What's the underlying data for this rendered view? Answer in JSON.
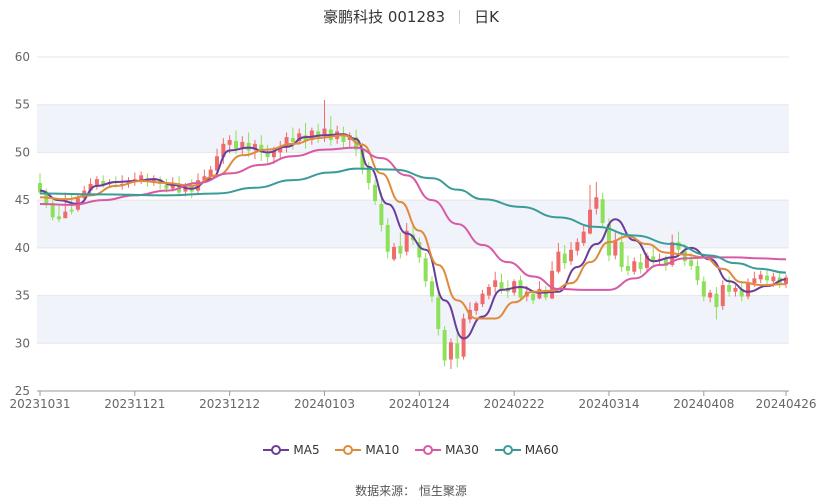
{
  "header": {
    "title": "豪鹏科技 001283",
    "period": "日K"
  },
  "source": "数据来源： 恒生聚源",
  "colors": {
    "up": "#ef6b6b",
    "down": "#8de05a",
    "grid": "#e6e6e6",
    "band": "#f0f3fa"
  },
  "chart_data": {
    "type": "candlestick",
    "ylim": [
      25,
      60
    ],
    "yticks": [
      25,
      30,
      35,
      40,
      45,
      50,
      55,
      60
    ],
    "xtick_labels": [
      "20231031",
      "20231121",
      "20231212",
      "20240103",
      "20240124",
      "20240222",
      "20240314",
      "20240408",
      "20240426"
    ],
    "xtick_index": [
      0,
      15,
      30,
      45,
      60,
      75,
      90,
      105,
      118
    ],
    "legend": [
      {
        "name": "MA5",
        "color": "#6a3d9a"
      },
      {
        "name": "MA10",
        "color": "#e08a3c"
      },
      {
        "name": "MA30",
        "color": "#d85aa5"
      },
      {
        "name": "MA60",
        "color": "#3a9c98"
      }
    ],
    "ohlc": [
      [
        46.8,
        47.8,
        45.8,
        45.6
      ],
      [
        45.9,
        46.2,
        44.5,
        44.2
      ],
      [
        44.7,
        45.0,
        43.2,
        42.9
      ],
      [
        43.3,
        44.5,
        43.0,
        42.7
      ],
      [
        43.1,
        45.8,
        43.8,
        43.5
      ],
      [
        44.0,
        45.6,
        43.8,
        43.5
      ],
      [
        44.0,
        45.6,
        45.2,
        43.8
      ],
      [
        45.2,
        46.5,
        46.0,
        44.8
      ],
      [
        46.0,
        47.3,
        46.7,
        45.7
      ],
      [
        46.6,
        47.5,
        47.2,
        46.1
      ],
      [
        47.0,
        47.6,
        46.6,
        46.3
      ],
      [
        46.7,
        47.2,
        46.9,
        46.4
      ],
      [
        46.9,
        47.5,
        46.8,
        46.3
      ],
      [
        46.6,
        47.6,
        46.7,
        46.1
      ],
      [
        46.8,
        47.4,
        46.9,
        46.3
      ],
      [
        47.1,
        47.9,
        47.2,
        46.5
      ],
      [
        47.1,
        48.0,
        47.6,
        46.7
      ],
      [
        47.3,
        47.8,
        46.9,
        46.4
      ],
      [
        46.8,
        47.6,
        47.3,
        46.5
      ],
      [
        47.2,
        47.5,
        46.7,
        46.1
      ],
      [
        46.6,
        47.2,
        46.2,
        45.8
      ],
      [
        46.2,
        47.4,
        46.7,
        45.9
      ],
      [
        46.7,
        47.5,
        45.8,
        45.4
      ],
      [
        45.9,
        46.8,
        46.4,
        45.4
      ],
      [
        46.5,
        47.2,
        45.9,
        45.2
      ],
      [
        46.0,
        47.8,
        47.1,
        45.6
      ],
      [
        47.1,
        48.2,
        47.5,
        46.8
      ],
      [
        47.5,
        48.6,
        48.2,
        47.1
      ],
      [
        48.1,
        50.4,
        49.6,
        47.7
      ],
      [
        49.5,
        51.5,
        50.9,
        48.8
      ],
      [
        50.8,
        51.8,
        51.3,
        49.9
      ],
      [
        51.2,
        52.3,
        50.4,
        49.8
      ],
      [
        50.5,
        51.7,
        51.1,
        49.8
      ],
      [
        51.0,
        52.1,
        50.2,
        49.5
      ],
      [
        50.3,
        51.3,
        50.9,
        49.3
      ],
      [
        50.8,
        51.8,
        50.0,
        49.1
      ],
      [
        49.9,
        50.8,
        49.5,
        48.9
      ],
      [
        49.5,
        50.6,
        50.1,
        48.8
      ],
      [
        50.0,
        51.2,
        50.6,
        49.3
      ],
      [
        50.5,
        52.1,
        51.6,
        50.0
      ],
      [
        51.5,
        52.6,
        51.1,
        50.3
      ],
      [
        51.2,
        52.5,
        52.0,
        50.8
      ],
      [
        51.8,
        53.1,
        51.2,
        50.4
      ],
      [
        51.3,
        52.6,
        52.3,
        50.8
      ],
      [
        52.2,
        53.0,
        51.6,
        51.0
      ],
      [
        51.7,
        55.5,
        52.5,
        51.1
      ],
      [
        52.4,
        53.8,
        51.3,
        50.7
      ],
      [
        51.4,
        52.8,
        52.2,
        50.9
      ],
      [
        52.0,
        52.7,
        51.1,
        50.5
      ],
      [
        51.3,
        52.1,
        51.8,
        50.6
      ],
      [
        51.6,
        52.4,
        50.3,
        49.6
      ],
      [
        50.4,
        51.0,
        48.4,
        47.7
      ],
      [
        48.5,
        49.0,
        46.8,
        46.1
      ],
      [
        46.6,
        47.1,
        44.9,
        44.5
      ],
      [
        44.6,
        45.8,
        42.4,
        41.7
      ],
      [
        42.4,
        43.1,
        39.6,
        38.9
      ],
      [
        38.8,
        40.5,
        40.1,
        38.6
      ],
      [
        40.2,
        41.6,
        39.4,
        38.9
      ],
      [
        39.6,
        42.6,
        41.8,
        39.2
      ],
      [
        41.4,
        42.4,
        40.8,
        40.3
      ],
      [
        40.6,
        41.1,
        39.0,
        38.4
      ],
      [
        38.9,
        39.5,
        36.5,
        35.9
      ],
      [
        36.5,
        37.0,
        34.9,
        34.3
      ],
      [
        34.8,
        35.3,
        31.5,
        30.8
      ],
      [
        31.4,
        31.8,
        28.2,
        27.6
      ],
      [
        28.3,
        30.5,
        30.1,
        27.3
      ],
      [
        30.0,
        31.6,
        28.4,
        27.5
      ],
      [
        28.6,
        33.1,
        32.6,
        28.3
      ],
      [
        32.5,
        34.3,
        33.5,
        32.1
      ],
      [
        33.4,
        34.4,
        34.2,
        33.0
      ],
      [
        34.1,
        35.6,
        35.2,
        33.8
      ],
      [
        35.0,
        36.2,
        35.9,
        34.6
      ],
      [
        35.9,
        37.5,
        36.6,
        35.3
      ],
      [
        36.4,
        37.3,
        35.7,
        35.2
      ],
      [
        35.8,
        36.6,
        35.4,
        34.7
      ],
      [
        35.3,
        36.7,
        36.5,
        35.0
      ],
      [
        36.6,
        37.1,
        34.8,
        34.5
      ],
      [
        34.9,
        36.0,
        35.4,
        34.4
      ],
      [
        35.2,
        35.6,
        34.5,
        34.1
      ],
      [
        34.7,
        36.5,
        35.7,
        34.6
      ],
      [
        35.6,
        36.0,
        34.8,
        34.5
      ],
      [
        34.7,
        38.6,
        37.6,
        34.6
      ],
      [
        37.5,
        40.5,
        39.6,
        37.3
      ],
      [
        39.4,
        40.3,
        38.4,
        37.8
      ],
      [
        38.6,
        40.6,
        39.8,
        38.2
      ],
      [
        39.7,
        41.0,
        40.6,
        39.2
      ],
      [
        40.5,
        42.3,
        41.7,
        40.2
      ],
      [
        41.5,
        46.6,
        44.0,
        41.4
      ],
      [
        44.1,
        46.9,
        45.3,
        43.5
      ],
      [
        45.1,
        45.8,
        42.6,
        42.1
      ],
      [
        42.5,
        43.1,
        39.2,
        38.6
      ],
      [
        39.2,
        41.6,
        40.8,
        38.8
      ],
      [
        40.6,
        41.4,
        38.0,
        37.5
      ],
      [
        38.1,
        39.2,
        37.6,
        37.1
      ],
      [
        37.5,
        39.0,
        38.6,
        37.2
      ],
      [
        38.5,
        39.4,
        37.8,
        37.3
      ],
      [
        37.9,
        39.5,
        39.2,
        37.6
      ],
      [
        39.1,
        40.3,
        38.6,
        38.1
      ],
      [
        38.7,
        39.4,
        38.8,
        38.2
      ],
      [
        38.9,
        39.2,
        38.1,
        37.6
      ],
      [
        38.2,
        41.4,
        40.6,
        38.0
      ],
      [
        40.6,
        41.7,
        39.8,
        39.4
      ],
      [
        39.7,
        40.4,
        38.6,
        38.1
      ],
      [
        38.7,
        39.5,
        38.1,
        37.7
      ],
      [
        38.1,
        38.8,
        36.6,
        36.1
      ],
      [
        36.5,
        37.0,
        34.9,
        34.4
      ],
      [
        34.8,
        35.6,
        35.3,
        34.3
      ],
      [
        35.2,
        35.9,
        33.8,
        32.5
      ],
      [
        33.9,
        36.6,
        36.1,
        33.5
      ],
      [
        36.1,
        37.0,
        35.4,
        34.9
      ],
      [
        35.4,
        36.1,
        35.8,
        34.9
      ],
      [
        35.7,
        36.4,
        34.9,
        34.4
      ],
      [
        34.9,
        36.8,
        36.4,
        34.6
      ],
      [
        36.3,
        37.5,
        36.8,
        35.9
      ],
      [
        36.7,
        37.6,
        37.2,
        36.3
      ],
      [
        37.1,
        37.8,
        36.6,
        36.1
      ],
      [
        36.5,
        37.4,
        37.0,
        35.9
      ],
      [
        36.9,
        37.5,
        36.3,
        35.8
      ],
      [
        36.2,
        37.2,
        36.9,
        35.8
      ]
    ],
    "ma": [
      {
        "name": "MA5",
        "color": "#6a3d9a",
        "points": [
          [
            0,
            46.0
          ],
          [
            3,
            45.0
          ],
          [
            6,
            44.6
          ],
          [
            9,
            46.5
          ],
          [
            12,
            46.9
          ],
          [
            15,
            47.0
          ],
          [
            18,
            47.2
          ],
          [
            21,
            46.6
          ],
          [
            24,
            46.2
          ],
          [
            27,
            47.2
          ],
          [
            30,
            50.2
          ],
          [
            33,
            50.5
          ],
          [
            36,
            50.0
          ],
          [
            39,
            50.6
          ],
          [
            42,
            51.6
          ],
          [
            45,
            51.8
          ],
          [
            48,
            51.9
          ],
          [
            50,
            51.4
          ],
          [
            52,
            48.5
          ],
          [
            55,
            44.6
          ],
          [
            58,
            41.5
          ],
          [
            61,
            39.8
          ],
          [
            64,
            34.5
          ],
          [
            67,
            30.5
          ],
          [
            70,
            32.8
          ],
          [
            73,
            35.6
          ],
          [
            76,
            35.9
          ],
          [
            79,
            35.3
          ],
          [
            82,
            35.4
          ],
          [
            85,
            38.0
          ],
          [
            88,
            40.4
          ],
          [
            91,
            43.0
          ],
          [
            94,
            40.8
          ],
          [
            97,
            38.6
          ],
          [
            100,
            39.0
          ],
          [
            103,
            40.0
          ],
          [
            106,
            38.8
          ],
          [
            109,
            36.5
          ],
          [
            112,
            35.4
          ],
          [
            115,
            36.0
          ],
          [
            118,
            36.7
          ]
        ]
      },
      {
        "name": "MA10",
        "color": "#e08a3c",
        "points": [
          [
            0,
            45.3
          ],
          [
            4,
            45.1
          ],
          [
            8,
            45.5
          ],
          [
            12,
            46.5
          ],
          [
            16,
            47.0
          ],
          [
            20,
            46.8
          ],
          [
            24,
            46.5
          ],
          [
            28,
            47.6
          ],
          [
            32,
            49.7
          ],
          [
            36,
            50.3
          ],
          [
            40,
            50.9
          ],
          [
            44,
            51.5
          ],
          [
            48,
            51.8
          ],
          [
            51,
            50.8
          ],
          [
            54,
            47.8
          ],
          [
            57,
            44.8
          ],
          [
            60,
            41.8
          ],
          [
            63,
            38.2
          ],
          [
            66,
            34.5
          ],
          [
            69,
            32.6
          ],
          [
            72,
            32.6
          ],
          [
            75,
            34.3
          ],
          [
            78,
            35.4
          ],
          [
            81,
            35.5
          ],
          [
            84,
            36.3
          ],
          [
            87,
            38.5
          ],
          [
            90,
            40.6
          ],
          [
            93,
            41.2
          ],
          [
            96,
            40.4
          ],
          [
            99,
            39.5
          ],
          [
            102,
            39.3
          ],
          [
            105,
            39.0
          ],
          [
            108,
            37.8
          ],
          [
            111,
            36.4
          ],
          [
            114,
            36.1
          ],
          [
            118,
            36.2
          ]
        ]
      },
      {
        "name": "MA30",
        "color": "#d85aa5",
        "points": [
          [
            0,
            44.6
          ],
          [
            5,
            44.5
          ],
          [
            10,
            45.0
          ],
          [
            15,
            45.5
          ],
          [
            20,
            46.0
          ],
          [
            25,
            46.8
          ],
          [
            30,
            47.8
          ],
          [
            35,
            48.7
          ],
          [
            40,
            49.6
          ],
          [
            45,
            50.3
          ],
          [
            50,
            50.5
          ],
          [
            54,
            49.4
          ],
          [
            58,
            47.6
          ],
          [
            62,
            45.0
          ],
          [
            66,
            42.5
          ],
          [
            70,
            40.3
          ],
          [
            74,
            38.5
          ],
          [
            78,
            37.0
          ],
          [
            82,
            35.7
          ],
          [
            86,
            35.6
          ],
          [
            90,
            35.6
          ],
          [
            94,
            36.8
          ],
          [
            98,
            38.2
          ],
          [
            102,
            38.9
          ],
          [
            106,
            39.0
          ],
          [
            110,
            39.0
          ],
          [
            114,
            38.9
          ],
          [
            118,
            38.8
          ]
        ]
      },
      {
        "name": "MA60",
        "color": "#3a9c98",
        "points": [
          [
            0,
            45.7
          ],
          [
            10,
            45.6
          ],
          [
            20,
            45.5
          ],
          [
            28,
            45.7
          ],
          [
            34,
            46.3
          ],
          [
            40,
            47.1
          ],
          [
            46,
            47.9
          ],
          [
            50,
            48.3
          ],
          [
            56,
            48.2
          ],
          [
            62,
            47.3
          ],
          [
            66,
            46.1
          ],
          [
            70,
            45.1
          ],
          [
            76,
            44.3
          ],
          [
            82,
            43.2
          ],
          [
            88,
            42.2
          ],
          [
            94,
            41.3
          ],
          [
            100,
            40.4
          ],
          [
            106,
            39.2
          ],
          [
            110,
            38.4
          ],
          [
            114,
            37.8
          ],
          [
            118,
            37.4
          ]
        ]
      }
    ]
  }
}
